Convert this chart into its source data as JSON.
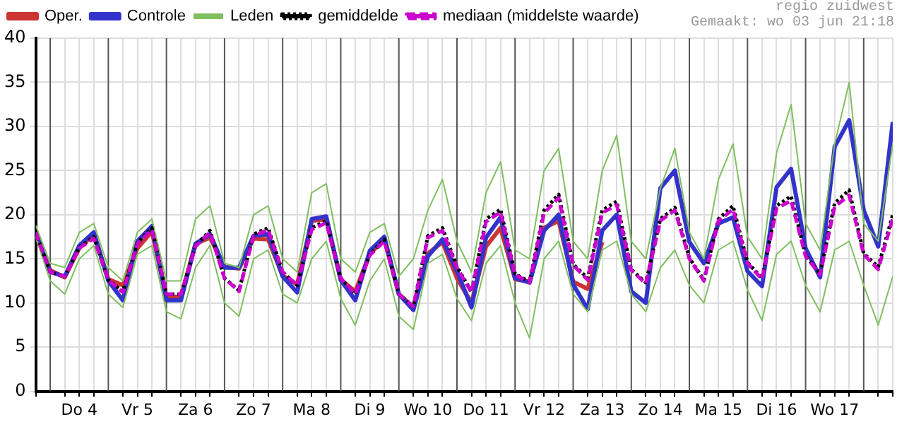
{
  "chart_data": {
    "type": "line",
    "annotations": [
      "regio zuidwest",
      "Gemaakt: wo 03 jun 21:18"
    ],
    "x": [
      "--06-03T18:00",
      "--06-04T00:00",
      "--06-04T06:00",
      "--06-04T12:00",
      "--06-04T18:00",
      "--06-05T00:00",
      "--06-05T06:00",
      "--06-05T12:00",
      "--06-05T18:00",
      "--06-06T00:00",
      "--06-06T06:00",
      "--06-06T12:00",
      "--06-06T18:00",
      "--06-07T00:00",
      "--06-07T06:00",
      "--06-07T12:00",
      "--06-07T18:00",
      "--06-08T00:00",
      "--06-08T06:00",
      "--06-08T12:00",
      "--06-08T18:00",
      "--06-09T00:00",
      "--06-09T06:00",
      "--06-09T12:00",
      "--06-09T18:00",
      "--06-10T00:00",
      "--06-10T06:00",
      "--06-10T12:00",
      "--06-10T18:00",
      "--06-11T00:00",
      "--06-11T06:00",
      "--06-11T12:00",
      "--06-11T18:00",
      "--06-12T00:00",
      "--06-12T06:00",
      "--06-12T12:00",
      "--06-12T18:00",
      "--06-13T00:00",
      "--06-13T06:00",
      "--06-13T12:00",
      "--06-13T18:00",
      "--06-14T00:00",
      "--06-14T06:00",
      "--06-14T12:00",
      "--06-14T18:00",
      "--06-15T00:00",
      "--06-15T06:00",
      "--06-15T12:00",
      "--06-15T18:00",
      "--06-16T00:00",
      "--06-16T06:00",
      "--06-16T12:00",
      "--06-16T18:00",
      "--06-17T00:00",
      "--06-17T06:00",
      "--06-17T12:00",
      "--06-17T18:00",
      "--06-18T00:00",
      "--06-18T06:00",
      "--06-18T12:00"
    ],
    "series": [
      {
        "name": "Oper.",
        "color": "#cc3333",
        "values": [
          17.7,
          13.7,
          12.9,
          16.2,
          17.8,
          12.7,
          12.0,
          16.2,
          18.1,
          10.7,
          10.7,
          16.7,
          17.4,
          14.1,
          13.9,
          17.3,
          17.2,
          13.1,
          12.1,
          19.3,
          19.5,
          12.6,
          11.3,
          15.6,
          17.2,
          11.0,
          9.5,
          15.6,
          16.9,
          12.8,
          10.0,
          16.4,
          18.5,
          12.7,
          12.4,
          18.5,
          19.3,
          12.4,
          11.6,
          16.9,
          null,
          null,
          null,
          null,
          null,
          null,
          null,
          null,
          null,
          null,
          null,
          null,
          null,
          null,
          null,
          null,
          null,
          null,
          null,
          null
        ]
      },
      {
        "name": "Controle",
        "color": "#3333cc",
        "values": [
          18.0,
          13.5,
          13.0,
          16.5,
          18.0,
          12.5,
          10.3,
          17.0,
          18.7,
          10.3,
          10.3,
          16.7,
          17.8,
          14.0,
          14.0,
          17.6,
          17.8,
          13.0,
          11.2,
          19.5,
          19.8,
          12.6,
          10.3,
          15.9,
          17.5,
          11.0,
          9.2,
          15.3,
          17.2,
          13.6,
          9.5,
          17.4,
          19.7,
          12.8,
          12.3,
          18.2,
          20.0,
          12.1,
          9.3,
          18.2,
          20.0,
          11.3,
          10.0,
          23.0,
          25.0,
          16.9,
          14.5,
          19.0,
          19.7,
          13.6,
          11.9,
          23.1,
          25.2,
          16.2,
          12.9,
          27.7,
          30.7,
          20.5,
          16.4,
          30.5
        ]
      },
      {
        "name": "Leden",
        "color": "#7fbf5f",
        "values": [
          18.8,
          14.5,
          14,
          18,
          19,
          14,
          12.5,
          18,
          19.5,
          12.5,
          12.5,
          19.5,
          21,
          14.5,
          14,
          20,
          21,
          15,
          13.5,
          22.5,
          23.5,
          15,
          13.5,
          18,
          19,
          13,
          15,
          20.5,
          24,
          17,
          13.5,
          22.5,
          26,
          16,
          15,
          25,
          27.5,
          17,
          15,
          25,
          29,
          17,
          15,
          23,
          27.5,
          18,
          15,
          24,
          28,
          17.5,
          15,
          27,
          32.5,
          19,
          16,
          28,
          35,
          19,
          17,
          28
        ]
      },
      {
        "color": "#7fbf5f",
        "values": [
          17.5,
          12.5,
          11,
          15,
          16.5,
          11,
          9.5,
          15.5,
          16.5,
          9,
          8.2,
          14,
          16.5,
          10,
          8.5,
          15,
          16,
          11,
          10,
          15,
          17,
          10.5,
          7.5,
          12.5,
          15,
          8.5,
          7,
          14.5,
          15.5,
          10.5,
          8,
          14.5,
          16.5,
          10,
          6,
          15,
          17,
          11,
          9,
          16,
          17,
          11,
          9,
          14,
          16,
          12,
          10,
          16,
          17,
          11.5,
          8,
          15.5,
          17,
          12,
          9,
          16,
          17,
          12,
          7.5,
          13
        ]
      },
      {
        "name": "gemiddelde",
        "color": "#000000",
        "line_style": "dotted",
        "values": [
          18,
          13.5,
          13,
          16.3,
          17.5,
          12.6,
          11.3,
          16.8,
          18.5,
          11.0,
          11.0,
          16.5,
          18.2,
          12.8,
          11.4,
          17.8,
          18.5,
          13.5,
          12.0,
          18.5,
          19.3,
          12.8,
          11.0,
          15.5,
          17.2,
          11.0,
          9.6,
          17.6,
          18.5,
          14.1,
          11.3,
          19.5,
          20.6,
          13.3,
          12.4,
          20.5,
          22.3,
          14.4,
          12.8,
          20.5,
          21.5,
          13.8,
          12.3,
          19.5,
          20.8,
          15.1,
          12.6,
          19.5,
          21.0,
          14.6,
          12.8,
          21.0,
          22.1,
          15.4,
          13.3,
          21.3,
          22.8,
          15.6,
          14.1,
          20.0
        ]
      },
      {
        "name": "mediaan (middelste waarde)",
        "color": "#cc00cc",
        "line_style": "dashed",
        "values": [
          18,
          13.5,
          13,
          16.2,
          17.3,
          12.6,
          11.2,
          16.7,
          18.3,
          11.0,
          11.0,
          16.4,
          18.0,
          12.8,
          11.3,
          17.6,
          18.3,
          13.5,
          12.0,
          18.3,
          19.1,
          12.8,
          11.0,
          15.4,
          17.0,
          11.0,
          9.6,
          17.4,
          18.2,
          14.0,
          11.2,
          19.2,
          20.3,
          13.2,
          12.3,
          20.2,
          21.9,
          14.3,
          12.6,
          20.2,
          21.1,
          13.7,
          12.2,
          19.3,
          20.5,
          15.0,
          12.5,
          19.3,
          20.6,
          14.5,
          12.7,
          20.7,
          21.6,
          15.3,
          13.2,
          20.9,
          22.2,
          15.5,
          13.8,
          19.6
        ]
      }
    ],
    "xlim": [
      "--06-03T18:00",
      "--06-18T12:00"
    ],
    "xticks": [
      {
        "value": "--06-03T18:00",
        "label": null
      },
      {
        "value": "--06-04T06:00",
        "label": null
      },
      {
        "value": "--06-04T12:00",
        "label": "Do 4"
      },
      {
        "value": "--06-04T18:00",
        "label": null
      },
      {
        "value": "--06-05T06:00",
        "label": null
      },
      {
        "value": "--06-05T12:00",
        "label": "Vr 5"
      },
      {
        "value": "--06-05T18:00",
        "label": null
      },
      {
        "value": "--06-06T06:00",
        "label": null
      },
      {
        "value": "--06-06T12:00",
        "label": "Za 6"
      },
      {
        "value": "--06-06T18:00",
        "label": null
      },
      {
        "value": "--06-07T06:00",
        "label": null
      },
      {
        "value": "--06-07T12:00",
        "label": "Zo 7"
      },
      {
        "value": "--06-07T18:00",
        "label": null
      },
      {
        "value": "--06-08T06:00",
        "label": null
      },
      {
        "value": "--06-08T12:00",
        "label": "Ma 8"
      },
      {
        "value": "--06-08T18:00",
        "label": null
      },
      {
        "value": "--06-09T06:00",
        "label": null
      },
      {
        "value": "--06-09T12:00",
        "label": "Di 9"
      },
      {
        "value": "--06-09T18:00",
        "label": null
      },
      {
        "value": "--06-10T06:00",
        "label": null
      },
      {
        "value": "--06-10T12:00",
        "label": "Wo 10"
      },
      {
        "value": "--06-10T18:00",
        "label": null
      },
      {
        "value": "--06-11T06:00",
        "label": null
      },
      {
        "value": "--06-11T12:00",
        "label": "Do 11"
      },
      {
        "value": "--06-11T18:00",
        "label": null
      },
      {
        "value": "--06-12T06:00",
        "label": null
      },
      {
        "value": "--06-12T12:00",
        "label": "Vr 12"
      },
      {
        "value": "--06-12T18:00",
        "label": null
      },
      {
        "value": "--06-13T06:00",
        "label": null
      },
      {
        "value": "--06-13T12:00",
        "label": "Za 13"
      },
      {
        "value": "--06-13T18:00",
        "label": null
      },
      {
        "value": "--06-14T06:00",
        "label": null
      },
      {
        "value": "--06-14T12:00",
        "label": "Zo 14"
      },
      {
        "value": "--06-14T18:00",
        "label": null
      },
      {
        "value": "--06-15T06:00",
        "label": null
      },
      {
        "value": "--06-15T12:00",
        "label": "Ma 15"
      },
      {
        "value": "--06-15T18:00",
        "label": null
      },
      {
        "value": "--06-16T06:00",
        "label": null
      },
      {
        "value": "--06-16T12:00",
        "label": "Di 16"
      },
      {
        "value": "--06-16T18:00",
        "label": null
      },
      {
        "value": "--06-17T06:00",
        "label": null
      },
      {
        "value": "--06-17T12:00",
        "label": "Wo 17"
      },
      {
        "value": "--06-17T18:00",
        "label": null
      },
      {
        "value": "--06-18T06:00",
        "label": null
      },
      {
        "value": "--06-18T12:00",
        "label": null
      }
    ],
    "ylim": [
      0,
      40
    ],
    "yticks": [
      0,
      5,
      10,
      15,
      20,
      25,
      30,
      35,
      40
    ],
    "ref_lines": [
      {
        "axis": "x",
        "value": "--06-04T00:00",
        "color": "#555555"
      },
      {
        "axis": "x",
        "value": "--06-05T00:00",
        "color": "#555555"
      },
      {
        "axis": "x",
        "value": "--06-06T00:00",
        "color": "#555555"
      },
      {
        "axis": "x",
        "value": "--06-07T00:00",
        "color": "#555555"
      },
      {
        "axis": "x",
        "value": "--06-08T00:00",
        "color": "#555555"
      },
      {
        "axis": "x",
        "value": "--06-09T00:00",
        "color": "#555555"
      },
      {
        "axis": "x",
        "value": "--06-10T00:00",
        "color": "#555555"
      },
      {
        "axis": "x",
        "value": "--06-11T00:00",
        "color": "#555555"
      },
      {
        "axis": "x",
        "value": "--06-12T00:00",
        "color": "#555555"
      },
      {
        "axis": "x",
        "value": "--06-13T00:00",
        "color": "#555555"
      },
      {
        "axis": "x",
        "value": "--06-14T00:00",
        "color": "#555555"
      },
      {
        "axis": "x",
        "value": "--06-15T00:00",
        "color": "#555555"
      },
      {
        "axis": "x",
        "value": "--06-16T00:00",
        "color": "#555555"
      },
      {
        "axis": "x",
        "value": "--06-17T00:00",
        "color": "#555555"
      },
      {
        "axis": "x",
        "value": "--06-18T00:00",
        "color": "#555555"
      }
    ],
    "grid": true,
    "legend": "top"
  }
}
